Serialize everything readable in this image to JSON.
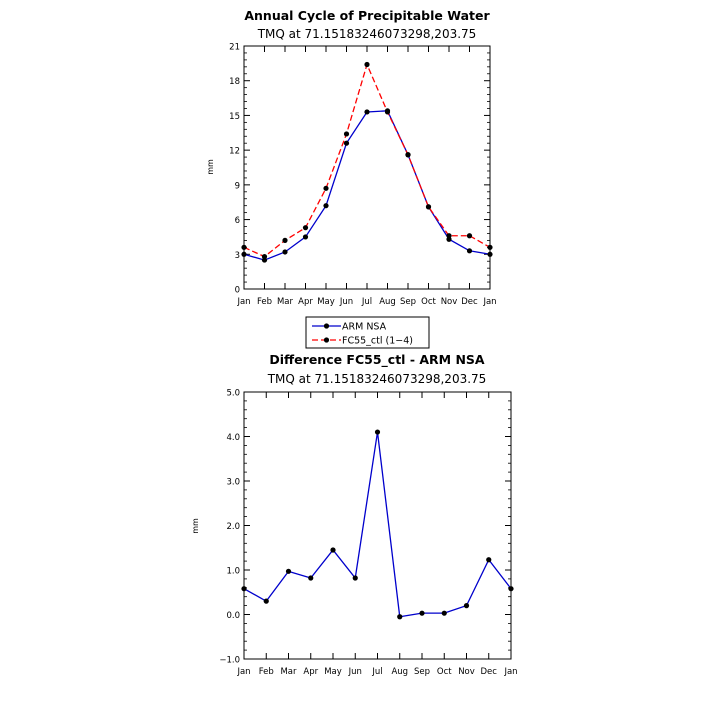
{
  "chart_data": [
    {
      "type": "line",
      "title": "Annual Cycle of Precipitable Water",
      "subtitle": "TMQ at 71.15183246073298,203.75",
      "xlabel": "",
      "ylabel": "mm",
      "categories": [
        "Jan",
        "Feb",
        "Mar",
        "Apr",
        "May",
        "Jun",
        "Jul",
        "Aug",
        "Sep",
        "Oct",
        "Nov",
        "Dec",
        "Jan"
      ],
      "ylim": [
        0,
        21
      ],
      "yticks": [
        0,
        3,
        6,
        9,
        12,
        15,
        18,
        21
      ],
      "ytick_labels": [
        "0",
        "3",
        "6",
        "9",
        "12",
        "15",
        "18",
        "21"
      ],
      "series": [
        {
          "name": "ARM NSA",
          "color": "#0000cc",
          "style": "solid",
          "values": [
            3.0,
            2.5,
            3.2,
            4.5,
            7.2,
            12.6,
            15.3,
            15.4,
            11.6,
            7.1,
            4.3,
            3.3,
            3.0
          ]
        },
        {
          "name": "FC55_ctl (1−4)",
          "color": "#ff0000",
          "style": "dashed",
          "values": [
            3.6,
            2.8,
            4.2,
            5.3,
            8.7,
            13.4,
            19.4,
            15.3,
            11.6,
            7.1,
            4.6,
            4.6,
            3.6
          ]
        }
      ],
      "legend": "bottom"
    },
    {
      "type": "line",
      "title": "Difference FC55_ctl - ARM NSA",
      "subtitle": "TMQ at 71.15183246073298,203.75",
      "xlabel": "",
      "ylabel": "mm",
      "categories": [
        "Jan",
        "Feb",
        "Mar",
        "Apr",
        "May",
        "Jun",
        "Jul",
        "Aug",
        "Sep",
        "Oct",
        "Nov",
        "Dec",
        "Jan"
      ],
      "ylim": [
        -1.0,
        5.0
      ],
      "yticks": [
        -1.0,
        0.0,
        1.0,
        2.0,
        3.0,
        4.0,
        5.0
      ],
      "ytick_labels": [
        "−1.0",
        "0.0",
        "1.0",
        "2.0",
        "3.0",
        "4.0",
        "5.0"
      ],
      "series": [
        {
          "color": "#0000cc",
          "style": "solid",
          "values": [
            0.58,
            0.3,
            0.97,
            0.82,
            1.45,
            0.82,
            4.1,
            -0.05,
            0.03,
            0.03,
            0.2,
            1.23,
            0.58
          ]
        }
      ]
    }
  ]
}
